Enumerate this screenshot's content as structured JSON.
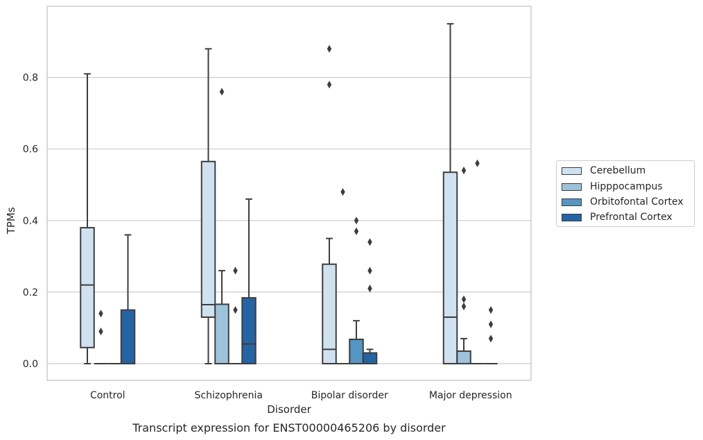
{
  "chart_data": {
    "type": "boxplot",
    "title": "",
    "xlabel": "Disorder",
    "ylabel": "TPMs",
    "ylim": [
      -0.045,
      0.99
    ],
    "yticks": [
      0.0,
      0.2,
      0.4,
      0.6,
      0.8
    ],
    "ytick_labels": [
      "0.0",
      "0.2",
      "0.4",
      "0.6",
      "0.8"
    ],
    "grid": "horizontal",
    "legend_position": "right",
    "categories": [
      "Control",
      "Schizophrenia",
      "Bipolar disorder",
      "Major depression"
    ],
    "series": [
      {
        "name": "Cerebellum",
        "color": "#d0e1f0",
        "boxes": [
          {
            "min": 0.0,
            "q1": 0.045,
            "median": 0.22,
            "q3": 0.38,
            "max": 0.81,
            "outliers": []
          },
          {
            "min": 0.0,
            "q1": 0.13,
            "median": 0.165,
            "q3": 0.565,
            "max": 0.88,
            "outliers": []
          },
          {
            "min": 0.0,
            "q1": 0.0,
            "median": 0.04,
            "q3": 0.278,
            "max": 0.35,
            "outliers": [
              0.78,
              0.88
            ]
          },
          {
            "min": 0.0,
            "q1": 0.0,
            "median": 0.13,
            "q3": 0.535,
            "max": 0.95,
            "outliers": []
          }
        ]
      },
      {
        "name": "Hipppocampus",
        "color": "#9dc3dc",
        "boxes": [
          {
            "min": 0.0,
            "q1": 0.0,
            "median": 0.0,
            "q3": 0.0,
            "max": 0.0,
            "outliers": [
              0.14,
              0.09
            ]
          },
          {
            "min": 0.0,
            "q1": 0.0,
            "median": 0.0,
            "q3": 0.166,
            "max": 0.26,
            "outliers": [
              0.76
            ]
          },
          {
            "min": 0.0,
            "q1": 0.0,
            "median": 0.0,
            "q3": 0.0,
            "max": 0.0,
            "outliers": [
              0.48
            ]
          },
          {
            "min": 0.0,
            "q1": 0.0,
            "median": 0.0,
            "q3": 0.035,
            "max": 0.07,
            "outliers": [
              0.54,
              0.18,
              0.16
            ]
          }
        ]
      },
      {
        "name": "Orbitofontal Cortex",
        "color": "#5595c4",
        "boxes": [
          {
            "min": 0.0,
            "q1": 0.0,
            "median": 0.0,
            "q3": 0.0,
            "max": 0.0,
            "outliers": []
          },
          {
            "min": 0.0,
            "q1": 0.0,
            "median": 0.0,
            "q3": 0.0,
            "max": 0.0,
            "outliers": [
              0.26,
              0.15
            ]
          },
          {
            "min": 0.0,
            "q1": 0.0,
            "median": 0.0,
            "q3": 0.068,
            "max": 0.12,
            "outliers": [
              0.4,
              0.37
            ]
          },
          {
            "min": 0.0,
            "q1": 0.0,
            "median": 0.0,
            "q3": 0.0,
            "max": 0.0,
            "outliers": [
              0.56
            ]
          }
        ]
      },
      {
        "name": "Prefrontal Cortex",
        "color": "#2464a4",
        "boxes": [
          {
            "min": 0.0,
            "q1": 0.0,
            "median": 0.0,
            "q3": 0.15,
            "max": 0.36,
            "outliers": []
          },
          {
            "min": 0.0,
            "q1": 0.0,
            "median": 0.055,
            "q3": 0.184,
            "max": 0.46,
            "outliers": []
          },
          {
            "min": 0.0,
            "q1": 0.0,
            "median": 0.0,
            "q3": 0.03,
            "max": 0.04,
            "outliers": [
              0.34,
              0.26,
              0.21
            ]
          },
          {
            "min": 0.0,
            "q1": 0.0,
            "median": 0.0,
            "q3": 0.0,
            "max": 0.0,
            "outliers": [
              0.15,
              0.11,
              0.07
            ]
          }
        ]
      }
    ]
  },
  "caption": "Transcript expression for ENST00000465206 by disorder"
}
